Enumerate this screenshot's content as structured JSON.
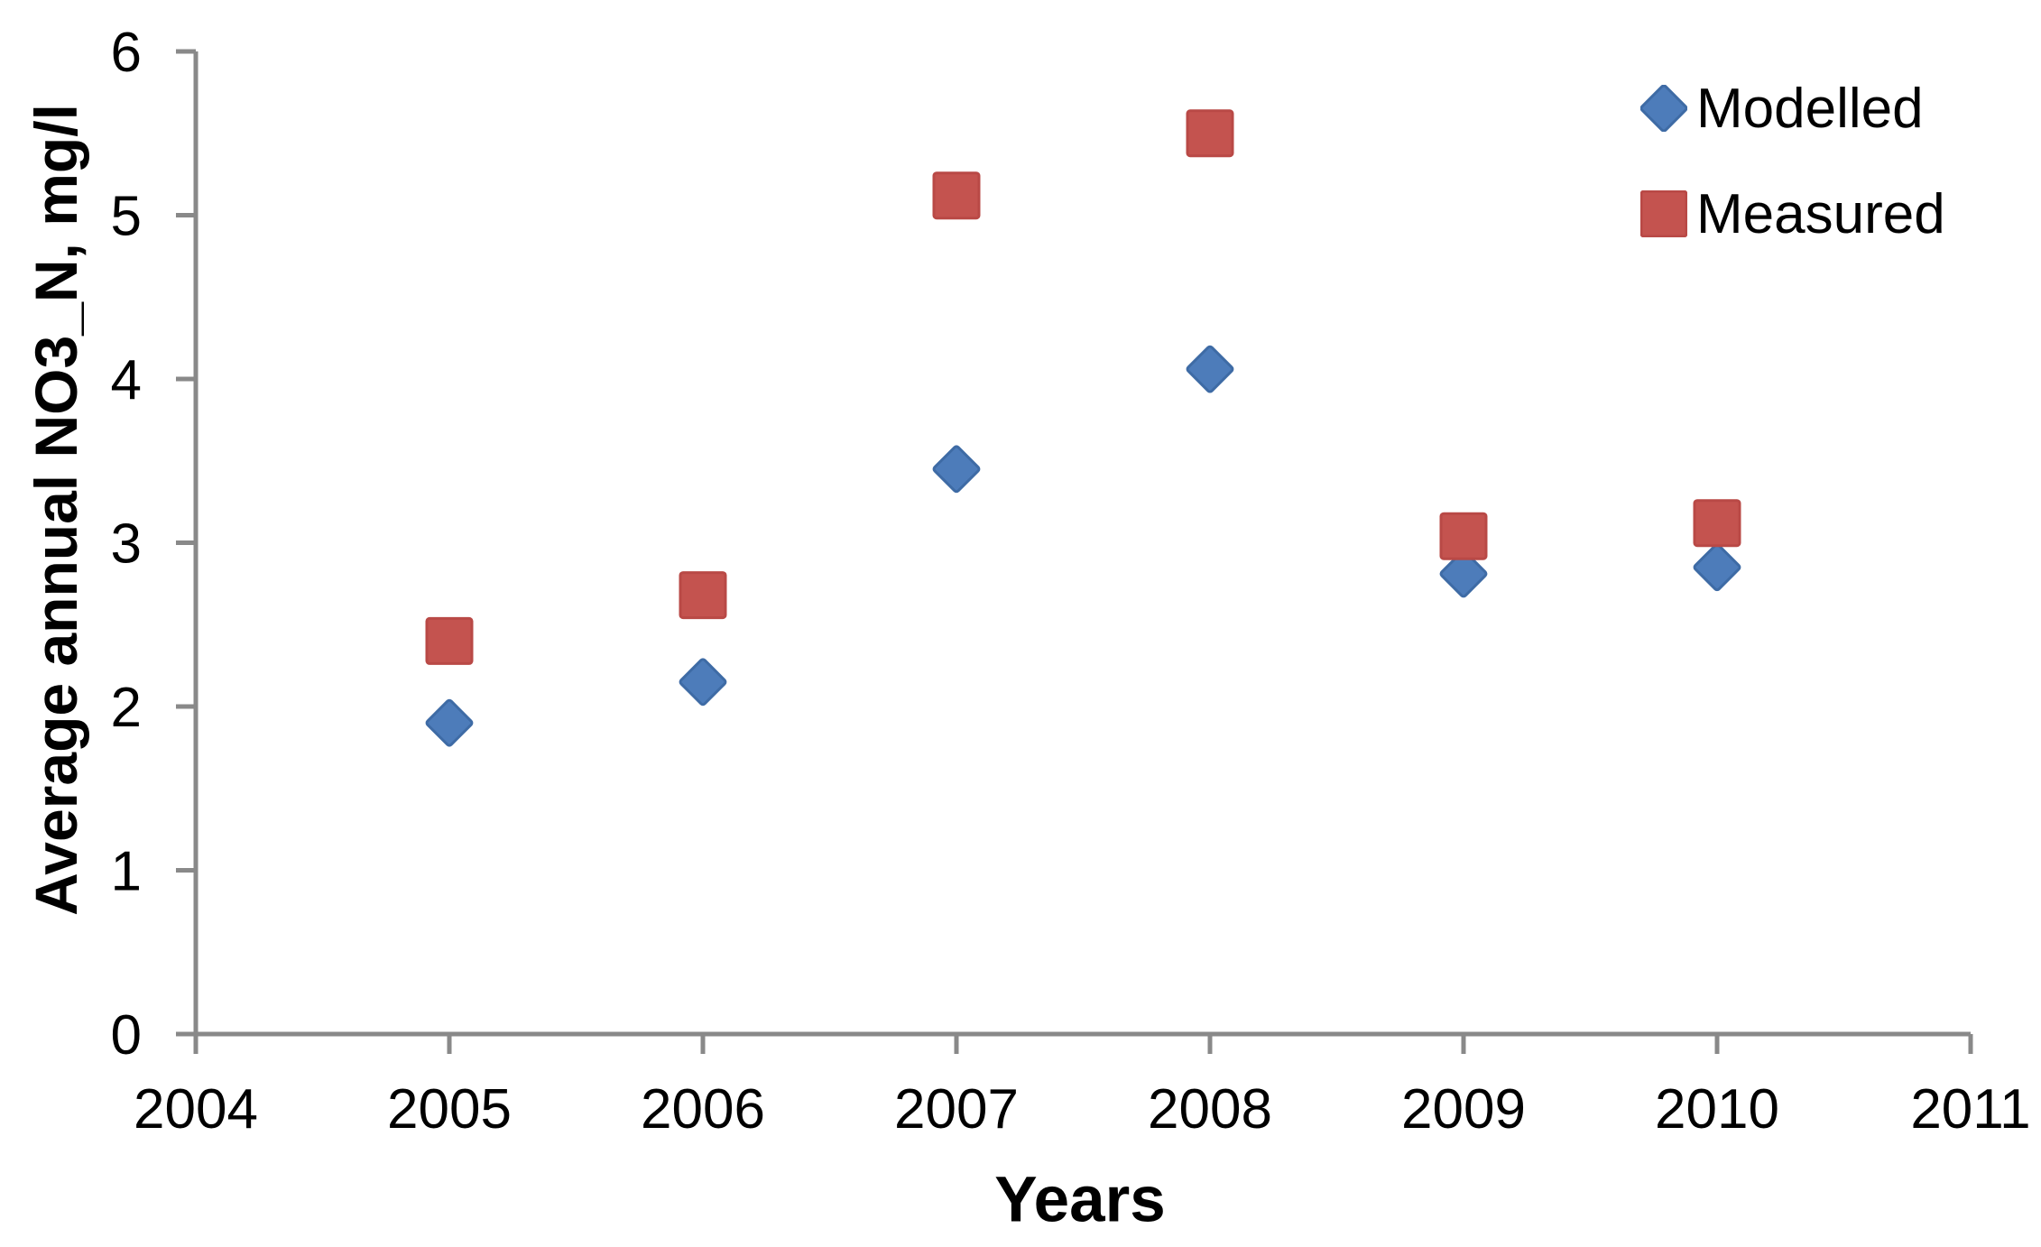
{
  "chart_data": {
    "type": "scatter",
    "title": "",
    "xlabel": "Years",
    "ylabel": "Average annual NO3_N, mg/l",
    "xlim": [
      2004,
      2011
    ],
    "ylim": [
      0,
      6
    ],
    "x_ticks": [
      2004,
      2005,
      2006,
      2007,
      2008,
      2009,
      2010,
      2011
    ],
    "y_ticks": [
      0,
      1,
      2,
      3,
      4,
      5,
      6
    ],
    "grid": false,
    "legend_position": "top-right-inside",
    "axis_color": "#898989",
    "text_color": "#000000",
    "series": [
      {
        "name": "Modelled",
        "marker": "diamond",
        "fill": "#4D7CBA",
        "stroke": "#3E6BA5",
        "x": [
          2005,
          2006,
          2007,
          2008,
          2009,
          2010
        ],
        "y": [
          1.9,
          2.15,
          3.45,
          4.06,
          2.81,
          2.85
        ]
      },
      {
        "name": "Measured",
        "marker": "square",
        "fill": "#C4534F",
        "stroke": "#B94946",
        "x": [
          2005,
          2006,
          2007,
          2008,
          2009,
          2010
        ],
        "y": [
          2.4,
          2.68,
          5.12,
          5.5,
          3.04,
          3.12
        ]
      }
    ]
  }
}
